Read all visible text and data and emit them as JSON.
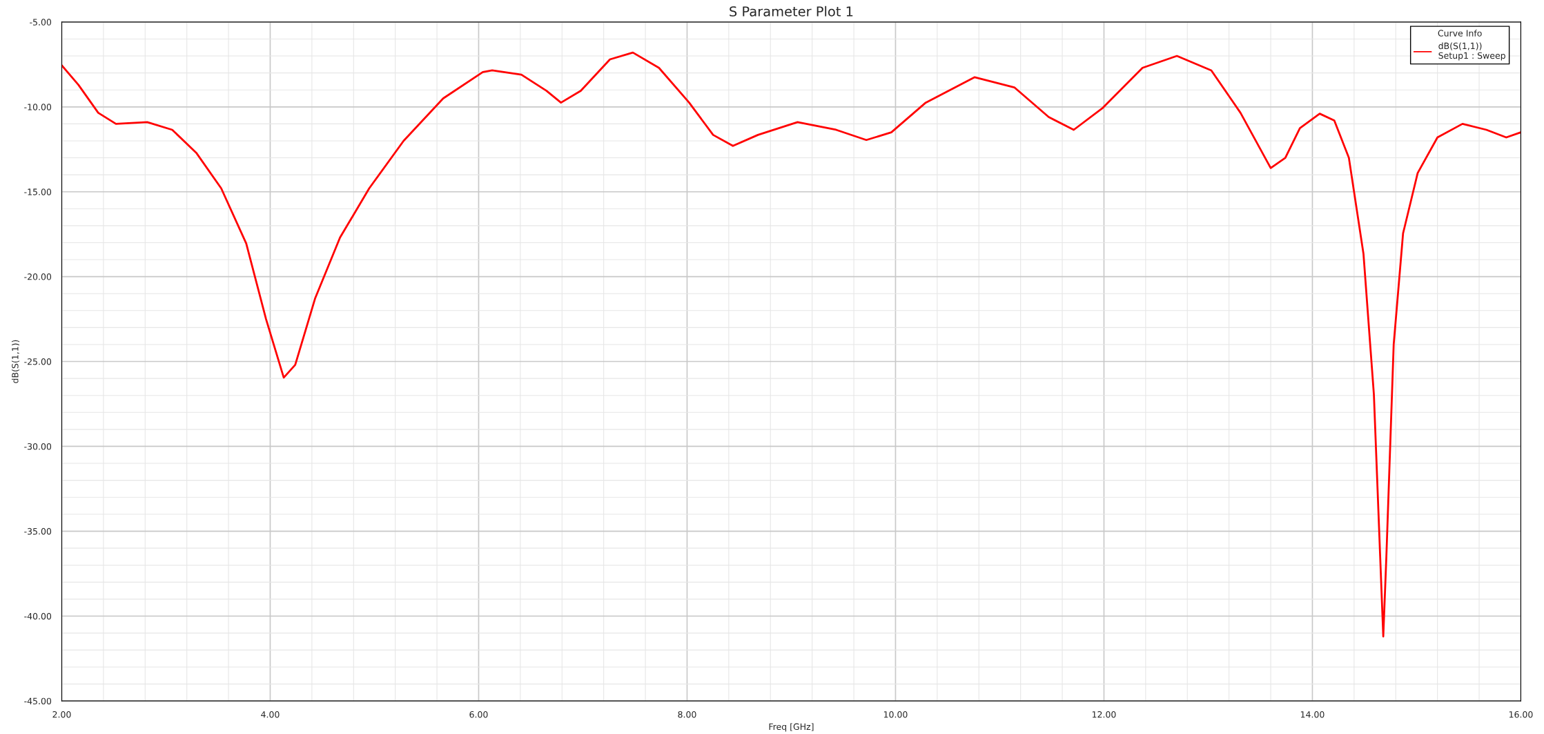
{
  "chart_data": {
    "type": "line",
    "title": "S Parameter Plot 1",
    "xlabel": "Freq [GHz]",
    "ylabel": "dB(S(1,1))",
    "legend_title": "Curve Info",
    "legend": "top right",
    "grid": true,
    "annotations": [
      "Setup1 : Sweep"
    ],
    "xlim": [
      2,
      16
    ],
    "ylim": [
      -45,
      -5
    ],
    "xticks": [
      {
        "value": 2,
        "label": "2.00"
      },
      {
        "value": 4,
        "label": "4.00"
      },
      {
        "value": 6,
        "label": "6.00"
      },
      {
        "value": 8,
        "label": "8.00"
      },
      {
        "value": 10,
        "label": "10.00"
      },
      {
        "value": 12,
        "label": "12.00"
      },
      {
        "value": 14,
        "label": "14.00"
      },
      {
        "value": 16,
        "label": "16.00"
      }
    ],
    "yticks": [
      {
        "value": -45,
        "label": "-45.00"
      },
      {
        "value": -40,
        "label": "-40.00"
      },
      {
        "value": -35,
        "label": "-35.00"
      },
      {
        "value": -30,
        "label": "-30.00"
      },
      {
        "value": -25,
        "label": "-25.00"
      },
      {
        "value": -20,
        "label": "-20.00"
      },
      {
        "value": -15,
        "label": "-15.00"
      },
      {
        "value": -10,
        "label": "-10.00"
      },
      {
        "value": -5,
        "label": "-5.00"
      }
    ],
    "series": [
      {
        "name": "dB(S(1,1))",
        "color": "#ff0000",
        "x": [
          2.0,
          2.16,
          2.35,
          2.52,
          2.82,
          3.06,
          3.29,
          3.53,
          3.77,
          3.96,
          4.13,
          4.24,
          4.43,
          4.67,
          4.95,
          5.28,
          5.66,
          6.04,
          6.13,
          6.41,
          6.65,
          6.79,
          6.98,
          7.26,
          7.48,
          7.73,
          8.02,
          8.25,
          8.44,
          8.68,
          9.06,
          9.43,
          9.72,
          9.96,
          10.29,
          10.76,
          11.14,
          11.47,
          11.71,
          11.99,
          12.37,
          12.7,
          13.03,
          13.31,
          13.6,
          13.74,
          13.88,
          14.07,
          14.21,
          14.35,
          14.49,
          14.59,
          14.65,
          14.68,
          14.71,
          14.78,
          14.87,
          15.01,
          15.2,
          15.44,
          15.67,
          15.86,
          16.0
        ],
        "values": [
          -7.55,
          -8.7,
          -10.35,
          -11.0,
          -10.9,
          -11.35,
          -12.7,
          -14.8,
          -18.05,
          -22.5,
          -25.95,
          -25.2,
          -21.3,
          -17.7,
          -14.8,
          -12.0,
          -9.5,
          -7.95,
          -7.85,
          -8.1,
          -9.05,
          -9.75,
          -9.05,
          -7.2,
          -6.8,
          -7.7,
          -9.75,
          -11.65,
          -12.3,
          -11.65,
          -10.9,
          -11.35,
          -11.95,
          -11.5,
          -9.75,
          -8.25,
          -8.85,
          -10.6,
          -11.35,
          -10.05,
          -7.7,
          -7.0,
          -7.85,
          -10.35,
          -13.6,
          -13.0,
          -11.25,
          -10.4,
          -10.8,
          -13.0,
          -18.65,
          -26.95,
          -36.45,
          -41.2,
          -36.45,
          -24.0,
          -17.45,
          -13.9,
          -11.8,
          -11.0,
          -11.35,
          -11.8,
          -11.5
        ]
      }
    ]
  }
}
